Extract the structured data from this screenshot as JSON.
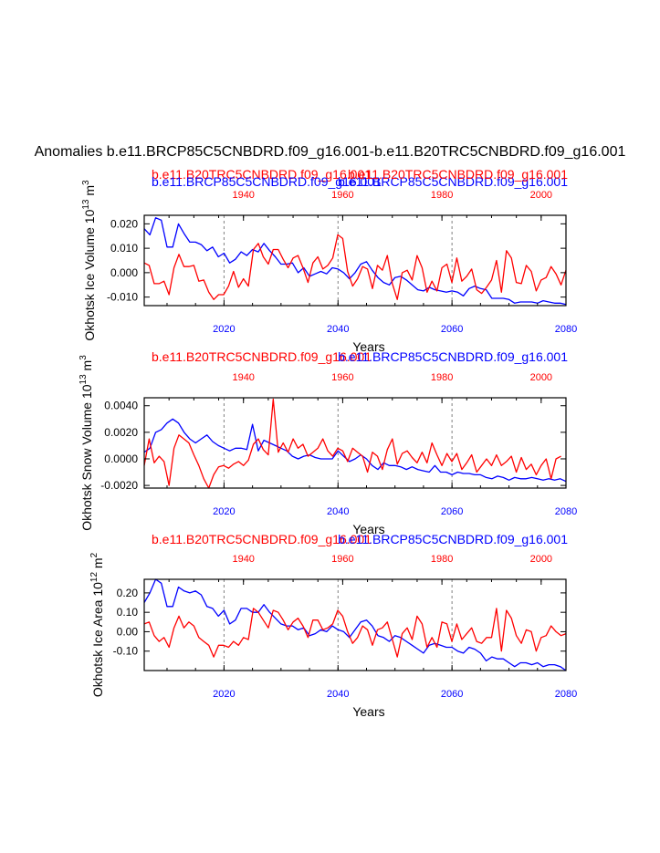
{
  "figure_title": "Anomalies b.e11.BRCP85C5CNBDRD.f09_g16.001-b.e11.B20TRC5CNBDRD.f09_g16.001",
  "colors": {
    "blue": "#0000ff",
    "red": "#ff0000",
    "axis": "#000000",
    "grid": "#808080"
  },
  "chart_data": [
    {
      "type": "line",
      "top_labels": [
        {
          "text": "b.e11.B20TRC5CNBDRD.f09_g16.001",
          "color": "red",
          "pos": "left"
        },
        {
          "text": "b.e11.BRCP85C5CNBDRD.f09_g16.001",
          "color": "blue",
          "pos": "right"
        },
        {
          "text": "b.e11.BRCP85C5CNBDRD.f09_g16.001",
          "color": "blue",
          "pos": "left"
        },
        {
          "text": "b.e11.B20TRC5CNBDRD.f09_g16.001",
          "color": "red",
          "pos": "right"
        }
      ],
      "ylabel": "Okhotsk Ice Volume 10",
      "ylabel_sup": "13",
      "ylabel_unit": " m",
      "ylabel_unit_sup": "3",
      "xlabel": "Years",
      "ylim": [
        -0.0135,
        0.0235
      ],
      "yticks": [
        -0.01,
        0.0,
        0.01,
        0.02
      ],
      "ytick_labels": [
        "-0.010",
        "0.000",
        "0.010",
        "0.020"
      ],
      "bottom_axis": {
        "range": [
          2006,
          2080
        ],
        "ticks": [
          2020,
          2040,
          2060,
          2080
        ],
        "color": "blue"
      },
      "top_axis": {
        "range": [
          1920,
          2005
        ],
        "ticks": [
          1940,
          1960,
          1980,
          2000
        ],
        "color": "red"
      },
      "gridlines_x_bottom_years": [
        2020,
        2040,
        2060
      ],
      "series": [
        {
          "name": "b.e11.BRCP85C5CNBDRD.f09_g16.001",
          "color": "blue",
          "axis": "bottom",
          "start": 2006,
          "values": [
            0.018,
            0.0155,
            0.0225,
            0.0215,
            0.0105,
            0.0105,
            0.02,
            0.016,
            0.0125,
            0.0125,
            0.0115,
            0.009,
            0.0105,
            0.0065,
            0.008,
            0.004,
            0.0055,
            0.0085,
            0.007,
            0.0095,
            0.0085,
            0.012,
            0.009,
            0.0065,
            0.0035,
            0.0035,
            0.004,
            0.0,
            0.002,
            -0.0015,
            -0.0005,
            0.0005,
            -0.0005,
            0.002,
            0.0015,
            0.0,
            -0.0025,
            0.0,
            0.0035,
            0.0045,
            0.001,
            -0.002,
            -0.004,
            -0.005,
            -0.002,
            -0.0015,
            -0.003,
            -0.005,
            -0.007,
            -0.0075,
            -0.006,
            -0.007,
            -0.0075,
            -0.008,
            -0.0075,
            -0.008,
            -0.0095,
            -0.0065,
            -0.0055,
            -0.0065,
            -0.007,
            -0.0105,
            -0.0105,
            -0.0105,
            -0.011,
            -0.0125,
            -0.012,
            -0.012,
            -0.012,
            -0.0125,
            -0.0115,
            -0.012,
            -0.0125,
            -0.0125,
            -0.013
          ]
        },
        {
          "name": "b.e11.B20TRC5CNBDRD.f09_g16.001",
          "color": "red",
          "axis": "top",
          "start": 1920,
          "values": [
            0.004,
            0.003,
            -0.0045,
            -0.0045,
            -0.0035,
            -0.009,
            0.002,
            0.0075,
            0.0025,
            0.0025,
            0.003,
            -0.0035,
            -0.003,
            -0.008,
            -0.011,
            -0.009,
            -0.009,
            -0.0055,
            0.0005,
            -0.006,
            -0.0025,
            -0.0055,
            0.0095,
            0.012,
            0.0065,
            0.0035,
            0.0095,
            0.0095,
            0.0055,
            0.002,
            0.006,
            0.007,
            0.002,
            -0.004,
            0.004,
            0.0065,
            0.0015,
            0.003,
            0.006,
            0.0155,
            0.014,
            0.0005,
            -0.0055,
            -0.0025,
            0.0025,
            0.0015,
            -0.0065,
            0.003,
            0.001,
            0.007,
            -0.0045,
            -0.011,
            0.0,
            0.001,
            -0.003,
            0.007,
            0.002,
            -0.008,
            -0.0035,
            -0.0075,
            0.002,
            0.0035,
            -0.004,
            0.006,
            -0.0035,
            -0.0015,
            0.0015,
            -0.007,
            -0.0085,
            -0.006,
            -0.003,
            0.005,
            -0.008,
            0.009,
            0.006,
            -0.004,
            -0.0045,
            0.003,
            0.0005,
            -0.0075,
            -0.003,
            -0.002,
            0.0025,
            -0.0005,
            -0.005,
            0.001
          ]
        }
      ]
    },
    {
      "type": "line",
      "top_labels": [
        {
          "text": "b.e11.B20TRC5CNBDRD.f09_g16.001",
          "color": "red",
          "pos": "left"
        },
        {
          "text": "b.e11.BRCP85C5CNBDRD.f09_g16.001",
          "color": "blue",
          "pos": "right"
        }
      ],
      "ylabel": "Okhotsk Snow Volume 10",
      "ylabel_sup": "13",
      "ylabel_unit": " m",
      "ylabel_unit_sup": "3",
      "xlabel": "Years",
      "ylim": [
        -0.0022,
        0.0046
      ],
      "yticks": [
        -0.002,
        0.0,
        0.002,
        0.004
      ],
      "ytick_labels": [
        "-0.0020",
        "0.0000",
        "0.0020",
        "0.0040"
      ],
      "bottom_axis": {
        "range": [
          2006,
          2080
        ],
        "ticks": [
          2020,
          2040,
          2060,
          2080
        ],
        "color": "blue"
      },
      "top_axis": {
        "range": [
          1920,
          2005
        ],
        "ticks": [
          1940,
          1960,
          1980,
          2000
        ],
        "color": "red"
      },
      "gridlines_x_bottom_years": [
        2020,
        2040,
        2060
      ],
      "series": [
        {
          "name": "b.e11.BRCP85C5CNBDRD.f09_g16.001",
          "color": "blue",
          "axis": "bottom",
          "start": 2006,
          "values": [
            0.0005,
            0.0008,
            0.002,
            0.0022,
            0.0027,
            0.003,
            0.0027,
            0.002,
            0.0015,
            0.0012,
            0.0015,
            0.0018,
            0.0013,
            0.001,
            0.0008,
            0.0006,
            0.0008,
            0.0008,
            0.0007,
            0.0026,
            0.0006,
            0.0014,
            0.0012,
            0.001,
            0.0008,
            0.0006,
            0.0002,
            0.0,
            0.0002,
            0.0003,
            0.0001,
            0.0,
            0.0,
            0.0,
            0.0006,
            0.0002,
            -0.0002,
            0.0,
            0.0003,
            0.0,
            -0.0005,
            -0.0008,
            -0.0003,
            -0.0005,
            -0.0005,
            -0.0006,
            -0.0008,
            -0.0006,
            -0.0008,
            -0.0009,
            -0.001,
            -0.0005,
            -0.001,
            -0.001,
            -0.0012,
            -0.001,
            -0.0011,
            -0.0011,
            -0.0012,
            -0.0012,
            -0.0014,
            -0.0015,
            -0.0013,
            -0.0014,
            -0.0016,
            -0.0014,
            -0.0015,
            -0.0015,
            -0.0014,
            -0.0015,
            -0.0016,
            -0.0015,
            -0.0016,
            -0.0015,
            -0.0017
          ]
        },
        {
          "name": "b.e11.B20TRC5CNBDRD.f09_g16.001",
          "color": "red",
          "axis": "top",
          "start": 1920,
          "values": [
            -0.0005,
            0.0015,
            -0.0003,
            0.0002,
            -0.0002,
            -0.002,
            0.0008,
            0.0018,
            0.0015,
            0.0012,
            0.0003,
            -0.0005,
            -0.0015,
            -0.0022,
            -0.0012,
            -0.0006,
            -0.0005,
            -0.0007,
            -0.0004,
            -0.0002,
            -0.0005,
            -0.0001,
            0.0011,
            0.0015,
            0.0007,
            0.0003,
            0.0045,
            0.0005,
            0.0012,
            0.0005,
            0.0015,
            0.0008,
            0.0011,
            0.0002,
            0.0005,
            0.0008,
            0.0015,
            0.0006,
            0.0002,
            0.0008,
            0.0006,
            -0.0002,
            0.0008,
            0.0005,
            0.0002,
            -0.001,
            0.0005,
            0.0002,
            -0.0008,
            0.0007,
            0.0015,
            -0.0004,
            0.0004,
            0.0006,
            0.0001,
            -0.0003,
            0.0005,
            -0.0003,
            0.0012,
            0.0003,
            -0.0005,
            0.0004,
            -0.0002,
            0.0004,
            -0.0008,
            -0.0003,
            0.0003,
            -0.001,
            -0.0005,
            0.0,
            -0.0005,
            0.0003,
            -0.0005,
            -0.0002,
            0.0002,
            -0.001,
            0.0001,
            -0.0008,
            -0.0004,
            -0.0012,
            -0.0005,
            0.0,
            -0.0015,
            0.0,
            0.0002
          ]
        }
      ]
    },
    {
      "type": "line",
      "top_labels": [
        {
          "text": "b.e11.B20TRC5CNBDRD.f09_g16.001",
          "color": "red",
          "pos": "left"
        },
        {
          "text": "b.e11.BRCP85C5CNBDRD.f09_g16.001",
          "color": "blue",
          "pos": "right"
        }
      ],
      "ylabel": "Okhotsk Ice Area 10",
      "ylabel_sup": "12",
      "ylabel_unit": " m",
      "ylabel_unit_sup": "2",
      "xlabel": "Years",
      "ylim": [
        -0.2,
        0.27
      ],
      "yticks": [
        -0.1,
        0.0,
        0.1,
        0.2
      ],
      "ytick_labels": [
        "-0.10",
        "0.00",
        "0.10",
        "0.20"
      ],
      "bottom_axis": {
        "range": [
          2006,
          2080
        ],
        "ticks": [
          2020,
          2040,
          2060,
          2080
        ],
        "color": "blue"
      },
      "top_axis": {
        "range": [
          1920,
          2005
        ],
        "ticks": [
          1940,
          1960,
          1980,
          2000
        ],
        "color": "red"
      },
      "gridlines_x_bottom_years": [
        2020,
        2040,
        2060
      ],
      "series": [
        {
          "name": "b.e11.BRCP85C5CNBDRD.f09_g16.001",
          "color": "blue",
          "axis": "bottom",
          "start": 2006,
          "values": [
            0.15,
            0.2,
            0.27,
            0.25,
            0.13,
            0.13,
            0.23,
            0.21,
            0.2,
            0.21,
            0.19,
            0.13,
            0.12,
            0.08,
            0.11,
            0.04,
            0.06,
            0.12,
            0.12,
            0.1,
            0.1,
            0.14,
            0.1,
            0.07,
            0.04,
            0.03,
            0.03,
            0.01,
            0.02,
            -0.02,
            -0.01,
            0.01,
            0.0,
            0.03,
            0.01,
            0.0,
            -0.03,
            0.01,
            0.05,
            0.06,
            0.03,
            -0.02,
            -0.03,
            -0.05,
            -0.02,
            -0.03,
            -0.05,
            -0.07,
            -0.09,
            -0.11,
            -0.07,
            -0.06,
            -0.07,
            -0.08,
            -0.08,
            -0.1,
            -0.11,
            -0.08,
            -0.09,
            -0.11,
            -0.15,
            -0.13,
            -0.14,
            -0.14,
            -0.16,
            -0.18,
            -0.16,
            -0.16,
            -0.17,
            -0.16,
            -0.18,
            -0.17,
            -0.17,
            -0.18,
            -0.2
          ]
        },
        {
          "name": "b.e11.B20TRC5CNBDRD.f09_g16.001",
          "color": "red",
          "axis": "top",
          "start": 1920,
          "values": [
            0.04,
            0.05,
            -0.02,
            -0.05,
            -0.03,
            -0.08,
            0.02,
            0.08,
            0.02,
            0.05,
            0.03,
            -0.03,
            -0.05,
            -0.07,
            -0.13,
            -0.07,
            -0.07,
            -0.08,
            -0.05,
            -0.07,
            -0.03,
            -0.04,
            0.12,
            0.1,
            0.06,
            0.02,
            0.11,
            0.1,
            0.06,
            0.01,
            0.05,
            0.07,
            0.03,
            -0.03,
            0.06,
            0.06,
            0.01,
            0.02,
            0.04,
            0.11,
            0.08,
            0.0,
            -0.06,
            -0.03,
            0.03,
            0.01,
            -0.07,
            0.01,
            0.02,
            0.05,
            -0.04,
            -0.13,
            -0.01,
            0.02,
            -0.04,
            0.08,
            0.04,
            -0.08,
            -0.03,
            -0.08,
            0.05,
            0.04,
            -0.05,
            0.04,
            -0.04,
            -0.01,
            0.02,
            -0.05,
            -0.06,
            -0.03,
            -0.03,
            0.12,
            -0.1,
            0.11,
            0.07,
            -0.02,
            -0.06,
            0.01,
            0.0,
            -0.1,
            -0.03,
            -0.02,
            0.03,
            0.0,
            -0.02,
            -0.01
          ]
        }
      ]
    }
  ]
}
